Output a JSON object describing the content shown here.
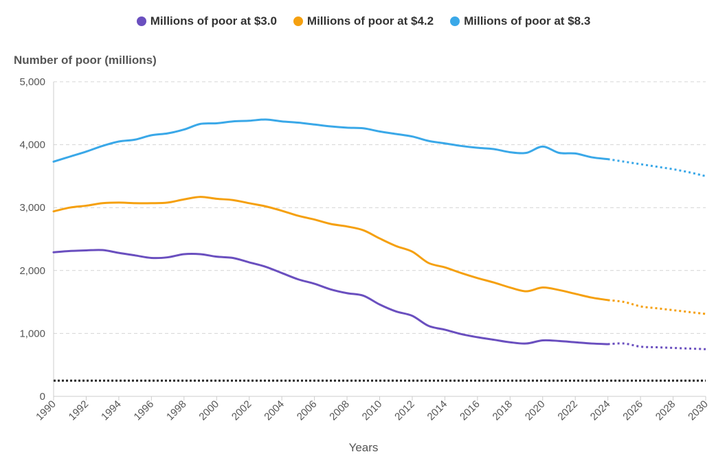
{
  "chart_data": {
    "type": "line",
    "ylabel": "Number of poor (millions)",
    "xlabel": "Years",
    "xlim": [
      1990,
      2030
    ],
    "ylim": [
      0,
      5000
    ],
    "y_ticks": [
      "0",
      "1,000",
      "2,000",
      "3,000",
      "4,000",
      "5,000"
    ],
    "y_tick_values": [
      0,
      1000,
      2000,
      3000,
      4000,
      5000
    ],
    "x_ticks": [
      "1990",
      "1992",
      "1994",
      "1996",
      "1998",
      "2000",
      "2002",
      "2004",
      "2006",
      "2008",
      "2010",
      "2012",
      "2014",
      "2016",
      "2018",
      "2020",
      "2022",
      "2024",
      "2026",
      "2028",
      "2030"
    ],
    "x_tick_values": [
      1990,
      1992,
      1994,
      1996,
      1998,
      2000,
      2002,
      2004,
      2006,
      2008,
      2010,
      2012,
      2014,
      2016,
      2018,
      2020,
      2022,
      2024,
      2026,
      2028,
      2030
    ],
    "grid": "horizontal-dashed",
    "legend_position": "top-center",
    "reference_line": {
      "y": 250,
      "style": "dotted",
      "color": "#222222"
    },
    "series": [
      {
        "name": "Millions of poor at $3.0",
        "color": "#6a4fbf",
        "x": [
          1990,
          1991,
          1992,
          1993,
          1994,
          1995,
          1996,
          1997,
          1998,
          1999,
          2000,
          2001,
          2002,
          2003,
          2004,
          2005,
          2006,
          2007,
          2008,
          2009,
          2010,
          2011,
          2012,
          2013,
          2014,
          2015,
          2016,
          2017,
          2018,
          2019,
          2020,
          2021,
          2022,
          2023,
          2024
        ],
        "y": [
          2290,
          2310,
          2320,
          2325,
          2280,
          2240,
          2200,
          2210,
          2260,
          2260,
          2220,
          2200,
          2130,
          2060,
          1960,
          1860,
          1790,
          1700,
          1640,
          1600,
          1460,
          1350,
          1280,
          1120,
          1060,
          990,
          940,
          900,
          860,
          840,
          890,
          880,
          860,
          840,
          830
        ],
        "projection_x": [
          2024,
          2025,
          2026,
          2027,
          2028,
          2029,
          2030
        ],
        "projection_y": [
          830,
          840,
          790,
          780,
          770,
          760,
          750
        ]
      },
      {
        "name": "Millions of poor at $4.2",
        "color": "#f5a00f",
        "x": [
          1990,
          1991,
          1992,
          1993,
          1994,
          1995,
          1996,
          1997,
          1998,
          1999,
          2000,
          2001,
          2002,
          2003,
          2004,
          2005,
          2006,
          2007,
          2008,
          2009,
          2010,
          2011,
          2012,
          2013,
          2014,
          2015,
          2016,
          2017,
          2018,
          2019,
          2020,
          2021,
          2022,
          2023,
          2024
        ],
        "y": [
          2940,
          3000,
          3030,
          3070,
          3080,
          3070,
          3070,
          3080,
          3130,
          3170,
          3140,
          3120,
          3070,
          3020,
          2950,
          2870,
          2810,
          2740,
          2700,
          2640,
          2510,
          2390,
          2300,
          2120,
          2050,
          1960,
          1880,
          1810,
          1730,
          1670,
          1730,
          1690,
          1630,
          1570,
          1530
        ],
        "projection_x": [
          2024,
          2025,
          2026,
          2027,
          2028,
          2029,
          2030
        ],
        "projection_y": [
          1530,
          1500,
          1430,
          1400,
          1370,
          1340,
          1310
        ]
      },
      {
        "name": "Millions of poor at $8.3",
        "color": "#3aa8e8",
        "x": [
          1990,
          1991,
          1992,
          1993,
          1994,
          1995,
          1996,
          1997,
          1998,
          1999,
          2000,
          2001,
          2002,
          2003,
          2004,
          2005,
          2006,
          2007,
          2008,
          2009,
          2010,
          2011,
          2012,
          2013,
          2014,
          2015,
          2016,
          2017,
          2018,
          2019,
          2020,
          2021,
          2022,
          2023,
          2024
        ],
        "y": [
          3730,
          3810,
          3890,
          3980,
          4050,
          4080,
          4150,
          4180,
          4240,
          4330,
          4340,
          4370,
          4380,
          4400,
          4370,
          4350,
          4320,
          4290,
          4270,
          4260,
          4210,
          4170,
          4130,
          4060,
          4020,
          3980,
          3950,
          3930,
          3880,
          3870,
          3970,
          3870,
          3860,
          3800,
          3770
        ],
        "projection_x": [
          2024,
          2025,
          2026,
          2027,
          2028,
          2029,
          2030
        ],
        "projection_y": [
          3770,
          3730,
          3690,
          3650,
          3610,
          3560,
          3500
        ]
      }
    ]
  }
}
